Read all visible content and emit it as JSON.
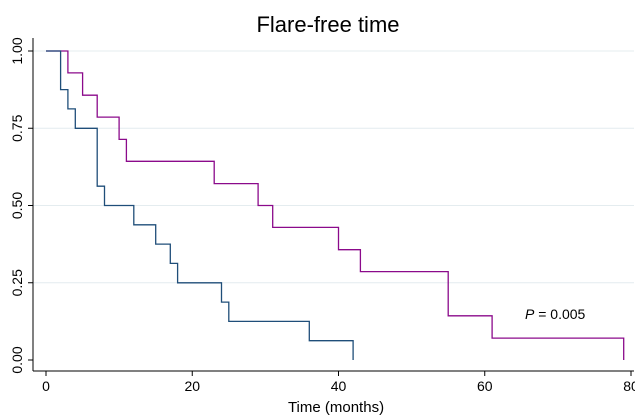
{
  "chart_data": {
    "type": "line",
    "step": true,
    "title": "Flare-free time",
    "xlabel": "Time (months)",
    "ylabel": "",
    "xlim": [
      0,
      80
    ],
    "ylim": [
      0,
      1
    ],
    "xticks": [
      0,
      20,
      40,
      60,
      80
    ],
    "yticks": [
      0.0,
      0.25,
      0.5,
      0.75,
      1.0
    ],
    "xtick_labels": [
      "0",
      "20",
      "40",
      "60",
      "80"
    ],
    "ytick_labels": [
      "0.00",
      "0.25",
      "0.50",
      "0.75",
      "1.00"
    ],
    "grid": "horizontal",
    "legend": "none",
    "annotation": {
      "italic": "P",
      "rest": " = 0.005"
    },
    "series": [
      {
        "color": "#8B0A8B",
        "points": [
          [
            0,
            1.0
          ],
          [
            3,
            1.0
          ],
          [
            3,
            0.929
          ],
          [
            5,
            0.929
          ],
          [
            5,
            0.857
          ],
          [
            7,
            0.857
          ],
          [
            7,
            0.786
          ],
          [
            10,
            0.786
          ],
          [
            10,
            0.714
          ],
          [
            11,
            0.714
          ],
          [
            11,
            0.643
          ],
          [
            23,
            0.643
          ],
          [
            23,
            0.571
          ],
          [
            29,
            0.571
          ],
          [
            29,
            0.5
          ],
          [
            31,
            0.5
          ],
          [
            31,
            0.429
          ],
          [
            40,
            0.429
          ],
          [
            40,
            0.357
          ],
          [
            43,
            0.357
          ],
          [
            43,
            0.286
          ],
          [
            55,
            0.286
          ],
          [
            55,
            0.143
          ],
          [
            61,
            0.143
          ],
          [
            61,
            0.071
          ],
          [
            79,
            0.071
          ],
          [
            79,
            0.0
          ]
        ]
      },
      {
        "color": "#1F4E79",
        "points": [
          [
            0,
            1.0
          ],
          [
            2,
            1.0
          ],
          [
            2,
            0.875
          ],
          [
            3,
            0.875
          ],
          [
            3,
            0.8125
          ],
          [
            4,
            0.8125
          ],
          [
            4,
            0.75
          ],
          [
            7,
            0.75
          ],
          [
            7,
            0.5625
          ],
          [
            8,
            0.5625
          ],
          [
            8,
            0.5
          ],
          [
            12,
            0.5
          ],
          [
            12,
            0.4375
          ],
          [
            15,
            0.4375
          ],
          [
            15,
            0.375
          ],
          [
            17,
            0.375
          ],
          [
            17,
            0.3125
          ],
          [
            18,
            0.3125
          ],
          [
            18,
            0.25
          ],
          [
            24,
            0.25
          ],
          [
            24,
            0.1875
          ],
          [
            25,
            0.1875
          ],
          [
            25,
            0.125
          ],
          [
            36,
            0.125
          ],
          [
            36,
            0.0625
          ],
          [
            42,
            0.0625
          ],
          [
            42,
            0.0
          ]
        ]
      }
    ]
  }
}
